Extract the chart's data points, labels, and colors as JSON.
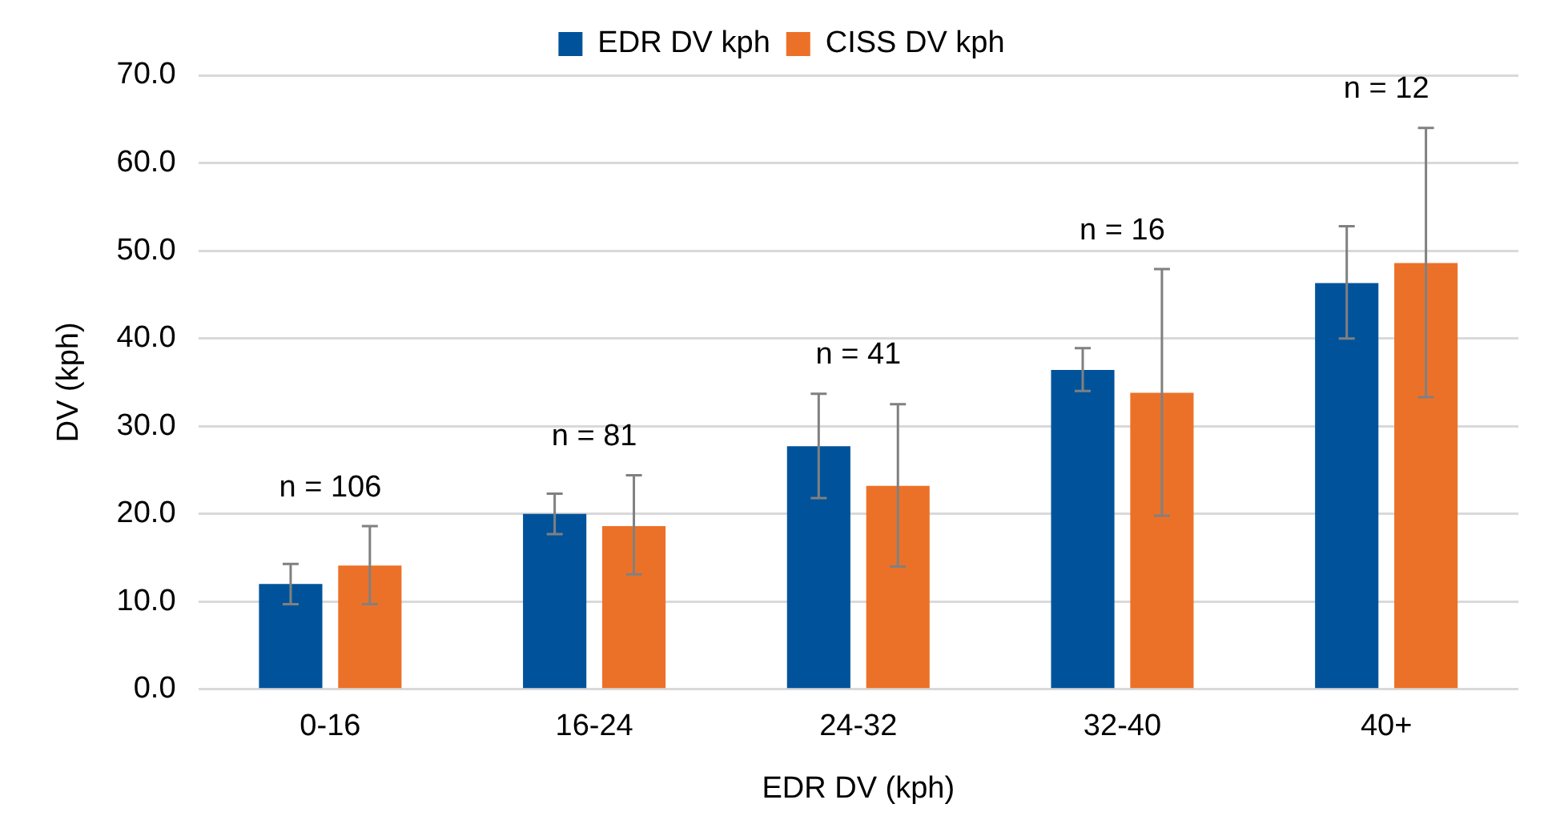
{
  "chart_data": {
    "type": "bar",
    "xlabel": "EDR DV (kph)",
    "ylabel": "DV (kph)",
    "categories": [
      "0-16",
      "16-24",
      "24-32",
      "32-40",
      "40+"
    ],
    "series": [
      {
        "name": "EDR DV kph",
        "color": "#00539a",
        "values": [
          12.0,
          20.0,
          27.7,
          36.4,
          46.3
        ],
        "errors": [
          [
            9.7,
            14.3
          ],
          [
            17.7,
            22.3
          ],
          [
            21.8,
            33.7
          ],
          [
            34.0,
            38.9
          ],
          [
            40.0,
            52.8
          ]
        ]
      },
      {
        "name": "CISS DV kph",
        "color": "#ec7128",
        "values": [
          14.1,
          18.6,
          23.2,
          33.8,
          48.6
        ],
        "errors": [
          [
            9.7,
            18.6
          ],
          [
            13.1,
            24.4
          ],
          [
            14.0,
            32.5
          ],
          [
            19.8,
            47.9
          ],
          [
            33.3,
            64.0
          ]
        ]
      }
    ],
    "ylim": [
      0,
      70
    ],
    "yticks": [
      {
        "value": 0,
        "label": "0.0"
      },
      {
        "value": 10,
        "label": "10.0"
      },
      {
        "value": 20,
        "label": "20.0"
      },
      {
        "value": 30,
        "label": "30.0"
      },
      {
        "value": 40,
        "label": "40.0"
      },
      {
        "value": 50,
        "label": "50.0"
      },
      {
        "value": 60,
        "label": "60.0"
      },
      {
        "value": 70,
        "label": "70.0"
      }
    ],
    "grid": "y",
    "legend": "top",
    "annotations": [
      "n = 106",
      "n = 81",
      "n = 41",
      "n = 16",
      "n = 12"
    ]
  }
}
